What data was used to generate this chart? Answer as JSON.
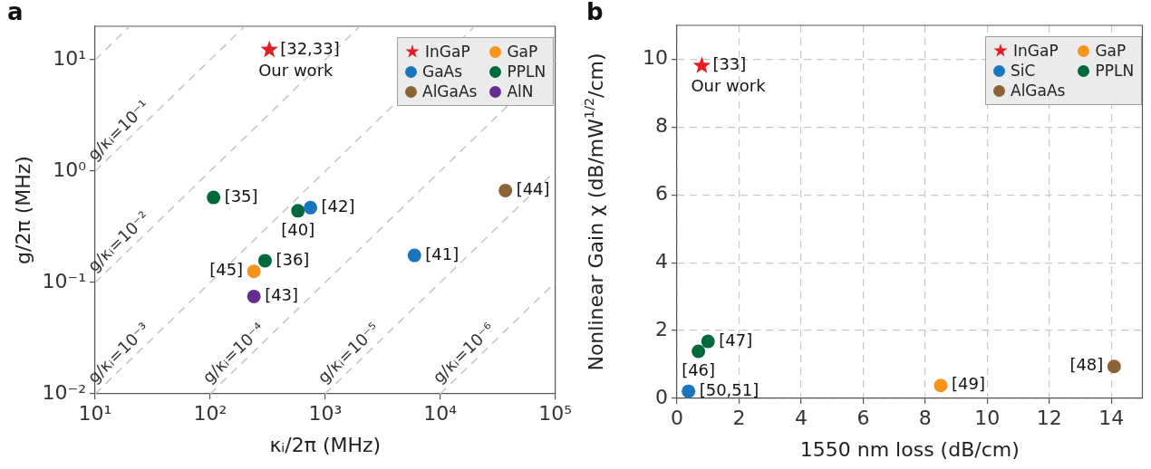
{
  "chart_data": [
    {
      "type": "scatter",
      "title": "a",
      "xlabel": "κᵢ/2π (MHz)",
      "ylabel": "g/2π (MHz)",
      "log": "xy",
      "grid": false,
      "legend": "top right",
      "xlim": [
        10,
        100000
      ],
      "xticks": [
        {
          "value": 10,
          "label": "10¹"
        },
        {
          "value": 100,
          "label": "10²"
        },
        {
          "value": 1000,
          "label": "10³"
        },
        {
          "value": 10000,
          "label": "10⁴"
        },
        {
          "value": 100000,
          "label": "10⁵"
        }
      ],
      "ylim": [
        0.01,
        20
      ],
      "yticks": [
        {
          "value": 0.01,
          "label": "10⁻²"
        },
        {
          "value": 0.1,
          "label": "10⁻¹"
        },
        {
          "value": 1,
          "label": "10⁰"
        },
        {
          "value": 10,
          "label": "10¹"
        }
      ],
      "series": [
        {
          "name": "g/κᵢ=10⁻¹",
          "type": "line",
          "line_style": "dashed",
          "marker": "none",
          "color": "#c8c8c8",
          "x": [
            10,
            200
          ],
          "values": [
            1,
            20
          ]
        },
        {
          "name": "g/κᵢ=10⁻²",
          "type": "line",
          "line_style": "dashed",
          "marker": "none",
          "color": "#c8c8c8",
          "x": [
            10,
            2000
          ],
          "values": [
            0.1,
            20
          ]
        },
        {
          "name": "g/κᵢ=10⁻³",
          "type": "line",
          "line_style": "dashed",
          "marker": "none",
          "color": "#c8c8c8",
          "x": [
            10,
            20000
          ],
          "values": [
            0.01,
            20
          ]
        },
        {
          "name": "g/κᵢ=10⁻⁴",
          "type": "line",
          "line_style": "dashed",
          "marker": "none",
          "color": "#c8c8c8",
          "x": [
            100,
            100000
          ],
          "values": [
            0.01,
            10
          ]
        },
        {
          "name": "g/κᵢ=10⁻⁵",
          "type": "line",
          "line_style": "dashed",
          "marker": "none",
          "color": "#c8c8c8",
          "x": [
            1000,
            100000
          ],
          "values": [
            0.01,
            1
          ]
        },
        {
          "name": "g/κᵢ=10⁻⁶",
          "type": "line",
          "line_style": "dashed",
          "marker": "none",
          "color": "#c8c8c8",
          "x": [
            10000,
            100000
          ],
          "values": [
            0.01,
            0.1
          ]
        },
        {
          "type": "line",
          "line_style": "dashed",
          "marker": "none",
          "color": "#c8c8c8",
          "x": [
            10,
            20
          ],
          "values": [
            10,
            20
          ]
        },
        {
          "name": "InGaP",
          "type": "scatter",
          "marker": "star",
          "color": "#e31e24",
          "x": [
            327
          ],
          "values": [
            12.3
          ]
        },
        {
          "name": "GaP",
          "type": "scatter",
          "marker": "circle",
          "color": "#f7941d",
          "x": [
            240
          ],
          "values": [
            0.126
          ]
        },
        {
          "name": "GaAs",
          "type": "scatter",
          "marker": "circle",
          "color": "#1b75bc",
          "x": [
            745,
            5970
          ],
          "values": [
            0.47,
            0.175
          ]
        },
        {
          "name": "PPLN",
          "type": "scatter",
          "marker": "circle",
          "color": "#00693c",
          "x": [
            107,
            580,
            300
          ],
          "values": [
            0.58,
            0.44,
            0.157
          ]
        },
        {
          "name": "AlGaAs",
          "type": "scatter",
          "marker": "circle",
          "color": "#8c6239",
          "x": [
            36900
          ],
          "values": [
            0.67
          ]
        },
        {
          "name": "AlN",
          "type": "scatter",
          "marker": "circle",
          "color": "#662d91",
          "x": [
            240
          ],
          "values": [
            0.075
          ]
        }
      ],
      "annotations": [
        {
          "text": "[32,33]",
          "x": 327,
          "y": 12.3
        },
        {
          "text": "Our work",
          "x": 327,
          "y": 12.3
        },
        {
          "text": "[35]",
          "x": 107,
          "y": 0.58
        },
        {
          "text": "[40]",
          "x": 580,
          "y": 0.44
        },
        {
          "text": "[42]",
          "x": 745,
          "y": 0.47
        },
        {
          "text": "[44]",
          "x": 36900,
          "y": 0.67
        },
        {
          "text": "[41]",
          "x": 5970,
          "y": 0.175
        },
        {
          "text": "[36]",
          "x": 300,
          "y": 0.157
        },
        {
          "text": "[45]",
          "x": 240,
          "y": 0.126
        },
        {
          "text": "[43]",
          "x": 240,
          "y": 0.075
        }
      ]
    },
    {
      "type": "scatter",
      "title": "b",
      "xlabel": "1550 nm loss (dB/cm)",
      "ylabel": "Nonlinear Gain χ (dB/mW$^{1/2}$/cm)",
      "grid": true,
      "legend": "top right",
      "xlim": [
        0,
        15
      ],
      "xticks": [
        0,
        2,
        4,
        6,
        8,
        10,
        12,
        14
      ],
      "ylim": [
        0,
        11
      ],
      "yticks": [
        0,
        2,
        4,
        6,
        8,
        10
      ],
      "series": [
        {
          "name": "InGaP",
          "type": "scatter",
          "marker": "star",
          "color": "#e31e24",
          "x": [
            0.8
          ],
          "values": [
            9.81
          ]
        },
        {
          "name": "GaP",
          "type": "scatter",
          "marker": "circle",
          "color": "#f7941d",
          "x": [
            8.5
          ],
          "values": [
            0.38
          ]
        },
        {
          "name": "SiC",
          "type": "scatter",
          "marker": "circle",
          "color": "#1b75bc",
          "x": [
            0.37
          ],
          "values": [
            0.21
          ]
        },
        {
          "name": "PPLN",
          "type": "scatter",
          "marker": "circle",
          "color": "#00693c",
          "x": [
            1.0,
            0.69
          ],
          "values": [
            1.68,
            1.39
          ]
        },
        {
          "name": "AlGaAs",
          "type": "scatter",
          "marker": "circle",
          "color": "#8c6239",
          "x": [
            14.09
          ],
          "values": [
            0.94
          ]
        }
      ],
      "annotations": [
        {
          "text": "[33]",
          "x": 0.8,
          "y": 9.81
        },
        {
          "text": "Our work",
          "x": 0.8,
          "y": 9.81
        },
        {
          "text": "[47]",
          "x": 1.0,
          "y": 1.68
        },
        {
          "text": "[46]",
          "x": 0.69,
          "y": 1.39
        },
        {
          "text": "[50,51]",
          "x": 0.37,
          "y": 0.21
        },
        {
          "text": "[49]",
          "x": 8.5,
          "y": 0.38
        },
        {
          "text": "[48]",
          "x": 14.09,
          "y": 0.94
        }
      ]
    }
  ]
}
